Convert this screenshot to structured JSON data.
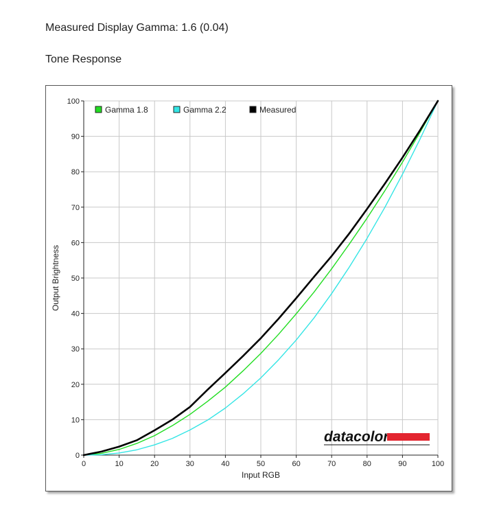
{
  "header": {
    "gamma_text": "Measured Display Gamma: 1.6 (0.04)",
    "section_title": "Tone Response"
  },
  "logo": {
    "text": "datacolor",
    "bar_color": "#e3252f"
  },
  "chart_data": {
    "type": "line",
    "title": "",
    "xlabel": "Input RGB",
    "ylabel": "Output Brightness",
    "xlim": [
      0,
      100
    ],
    "ylim": [
      0,
      100
    ],
    "xticks": [
      0,
      10,
      20,
      30,
      40,
      50,
      60,
      70,
      80,
      90,
      100
    ],
    "yticks": [
      0,
      10,
      20,
      30,
      40,
      50,
      60,
      70,
      80,
      90,
      100
    ],
    "grid": true,
    "legend_position": "top-left",
    "series": [
      {
        "name": "Gamma 1.8",
        "color": "#22dd22",
        "x": [
          0,
          5,
          10,
          15,
          20,
          25,
          30,
          35,
          40,
          45,
          50,
          55,
          60,
          65,
          70,
          75,
          80,
          85,
          90,
          95,
          100
        ],
        "y": [
          0,
          0.5,
          1.6,
          3.3,
          5.5,
          8.3,
          11.5,
          15.2,
          19.2,
          23.8,
          28.7,
          34.1,
          39.9,
          46.0,
          52.6,
          59.6,
          66.9,
          74.6,
          82.7,
          91.2,
          100
        ]
      },
      {
        "name": "Gamma 2.2",
        "color": "#33e5e5",
        "x": [
          0,
          5,
          10,
          15,
          20,
          25,
          30,
          35,
          40,
          45,
          50,
          55,
          60,
          65,
          70,
          75,
          80,
          85,
          90,
          95,
          100
        ],
        "y": [
          0,
          0.1,
          0.6,
          1.5,
          2.9,
          4.7,
          7.1,
          9.9,
          13.3,
          17.3,
          21.8,
          26.9,
          32.5,
          38.7,
          45.6,
          53.1,
          61.2,
          69.9,
          79.3,
          89.3,
          100
        ]
      },
      {
        "name": "Measured",
        "color": "#000000",
        "x": [
          0,
          5,
          10,
          15,
          20,
          25,
          30,
          35,
          40,
          45,
          50,
          55,
          60,
          65,
          70,
          75,
          80,
          85,
          90,
          95,
          100
        ],
        "y": [
          0,
          1.0,
          2.4,
          4.2,
          7.0,
          10.0,
          13.6,
          18.5,
          23.2,
          28.0,
          33.0,
          38.5,
          44.3,
          50.3,
          56.2,
          62.6,
          69.5,
          76.6,
          84.0,
          91.8,
          100
        ]
      }
    ]
  }
}
